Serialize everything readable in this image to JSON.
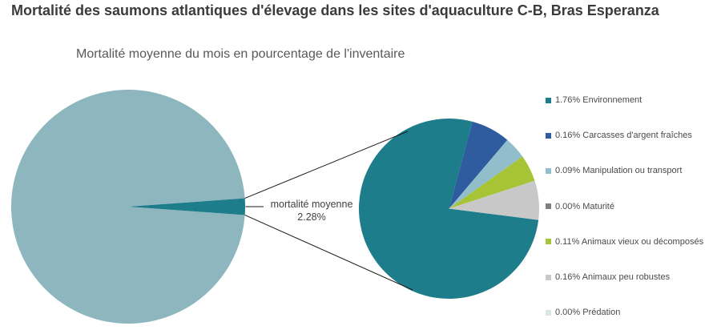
{
  "title": "Mortalité des saumons atlantiques d'élevage dans les sites d'aquaculture C-B, Bras Esperanza",
  "subtitle": "Mortalité moyenne du mois en pourcentage de l'inventaire",
  "callout": {
    "line1": "mortalité moyenne",
    "line2": "2.28%"
  },
  "legend": {
    "position": "right",
    "items": [
      {
        "value": "1.76%",
        "label": "Environnement",
        "color": "#1e7d8b"
      },
      {
        "value": "0.16%",
        "label": "Carcasses d'argent fraîches",
        "color": "#2e5c9f"
      },
      {
        "value": "0.09%",
        "label": "Manipulation ou transport",
        "color": "#92becb"
      },
      {
        "value": "0.00%",
        "label": "Maturité",
        "color": "#7f7f7f"
      },
      {
        "value": "0.11%",
        "label": "Animaux vieux ou décomposés",
        "color": "#a6c436"
      },
      {
        "value": "0.16%",
        "label": "Animaux peu robustes",
        "color": "#c8c8c8"
      },
      {
        "value": "0.00%",
        "label": "Prédation",
        "color": "#d9e6e3"
      }
    ]
  },
  "chart_data": {
    "type": "pie",
    "variant": "pie-of-pie",
    "title": "Mortalité des saumons atlantiques d'élevage dans les sites d'aquaculture C-B, Bras Esperanza",
    "subtitle": "Mortalité moyenne du mois en pourcentage de l'inventaire",
    "legend_position": "right",
    "total_average_mortality_percent": 2.28,
    "main_pie": {
      "callout_label": "mortalité moyenne 2.28%",
      "start_angle_deg": 85.9,
      "slices": [
        {
          "label": "mortalité moyenne",
          "value": 2.28,
          "color": "#1e7d8b"
        },
        {
          "label": "",
          "value": 97.72,
          "color": "#8db6bf"
        }
      ]
    },
    "secondary_pie": {
      "start_angle_deg": 97.2,
      "categories": [
        "Environnement",
        "Carcasses d'argent fraîches",
        "Manipulation ou transport",
        "Maturité",
        "Animaux vieux ou décomposés",
        "Animaux peu robustes",
        "Prédation"
      ],
      "values": [
        1.76,
        0.16,
        0.09,
        0.0,
        0.11,
        0.16,
        0.0
      ],
      "colors": [
        "#1e7d8b",
        "#2e5c9f",
        "#92becb",
        "#7f7f7f",
        "#a6c436",
        "#c8c8c8",
        "#d9e6e3"
      ]
    },
    "connector_line_color": "#1a1a1a"
  }
}
